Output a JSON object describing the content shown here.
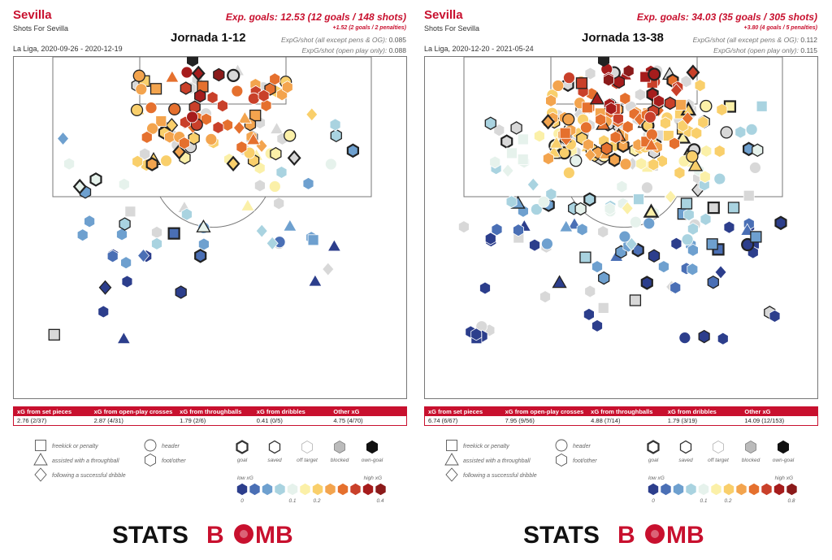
{
  "panels": [
    {
      "team": "Sevilla",
      "subtitle": "Shots For Sevilla",
      "period": "Jornada 1-12",
      "league_dates": "La Liga, 2020-09-26 - 2020-12-19",
      "exp_goals": "Exp. goals: 12.53 (12 goals / 148 shots)",
      "exp_goals_sub": "+1.52 (2 goals / 2 penalties)",
      "ratio1_label": "ExpG/shot (all except pens & OG):",
      "ratio1_value": "0.085",
      "ratio2_label": "ExpG/shot (open play only):",
      "ratio2_value": "0.088",
      "table_headers": [
        "xG from set pieces",
        "xG from open-play crosses",
        "xG from throughballs",
        "xG from dribbles",
        "Other xG"
      ],
      "table_values": [
        "2.76 (2/37)",
        "2.87 (4/31)",
        "1.79 (2/6)",
        "0.41 (0/5)",
        "4.75 (4/70)"
      ],
      "color_scale_max": "0.4",
      "seed": 7,
      "shot_count": 148
    },
    {
      "team": "Sevilla",
      "subtitle": "Shots For Sevilla",
      "period": "Jornada 13-38",
      "league_dates": "La Liga, 2020-12-20 - 2021-05-24",
      "exp_goals": "Exp. goals: 34.03 (35 goals / 305 shots)",
      "exp_goals_sub": "+3.80 (4 goals / 5 penalties)",
      "ratio1_label": "ExpG/shot (all except pens & OG):",
      "ratio1_value": "0.112",
      "ratio2_label": "ExpG/shot (open play only):",
      "ratio2_value": "0.115",
      "table_headers": [
        "xG from set pieces",
        "xG from open-play crosses",
        "xG from throughballs",
        "xG from dribbles",
        "Other xG"
      ],
      "table_values": [
        "6.74 (6/67)",
        "7.95 (9/56)",
        "4.88 (7/14)",
        "1.79 (3/19)",
        "14.09 (12/153)"
      ],
      "color_scale_max": "0.8",
      "seed": 23,
      "shot_count": 305
    }
  ],
  "legend": {
    "shape_labels": [
      "freekick or penalty",
      "assisted with a throughball",
      "following a successful dribble",
      "header",
      "foot/other"
    ],
    "outcome_labels": [
      "goal",
      "saved",
      "off target",
      "blocked",
      "own-goal"
    ],
    "low_xg": "low xG",
    "high_xg": "high xG",
    "scale_ticks": [
      "0",
      "0.1",
      "0.2"
    ],
    "colors": [
      "#2c3e8c",
      "#4a6fb5",
      "#6ea0cf",
      "#a9d3e0",
      "#e6f2ec",
      "#fbf0a8",
      "#f9cf6b",
      "#f3a44e",
      "#e5702e",
      "#c9402a",
      "#a61c1c",
      "#8b1a1a"
    ]
  },
  "brand": {
    "logo_left": "STATS",
    "logo_b": "B",
    "logo_right": "MB",
    "logo_color_left": "#111111",
    "logo_color_right": "#c8102e"
  },
  "chart_data": [
    {
      "type": "scatter",
      "title": "Jornada 1-12",
      "description_note": "Shot map: each marker is a shot; color = xG value, shape = shot type, outline = outcome",
      "total_shots": 148,
      "goals": 12,
      "exp_goals": 12.53,
      "xg_per_shot_excl_pens_og": 0.085,
      "xg_per_shot_open_play": 0.088,
      "breakdown": [
        {
          "category": "set pieces",
          "xg": 2.76,
          "goals": 2,
          "shots": 37
        },
        {
          "category": "open-play crosses",
          "xg": 2.87,
          "goals": 4,
          "shots": 31
        },
        {
          "category": "throughballs",
          "xg": 1.79,
          "goals": 2,
          "shots": 6
        },
        {
          "category": "dribbles",
          "xg": 0.41,
          "goals": 0,
          "shots": 5
        },
        {
          "category": "other",
          "xg": 4.75,
          "goals": 4,
          "shots": 70
        }
      ],
      "color_scale": [
        0,
        0.4
      ]
    },
    {
      "type": "scatter",
      "title": "Jornada 13-38",
      "description_note": "Shot map: each marker is a shot; color = xG value, shape = shot type, outline = outcome",
      "total_shots": 305,
      "goals": 35,
      "exp_goals": 34.03,
      "xg_per_shot_excl_pens_og": 0.112,
      "xg_per_shot_open_play": 0.115,
      "breakdown": [
        {
          "category": "set pieces",
          "xg": 6.74,
          "goals": 6,
          "shots": 67
        },
        {
          "category": "open-play crosses",
          "xg": 7.95,
          "goals": 9,
          "shots": 56
        },
        {
          "category": "throughballs",
          "xg": 4.88,
          "goals": 7,
          "shots": 14
        },
        {
          "category": "dribbles",
          "xg": 1.79,
          "goals": 3,
          "shots": 19
        },
        {
          "category": "other",
          "xg": 14.09,
          "goals": 12,
          "shots": 153
        }
      ],
      "color_scale": [
        0,
        0.8
      ]
    }
  ]
}
